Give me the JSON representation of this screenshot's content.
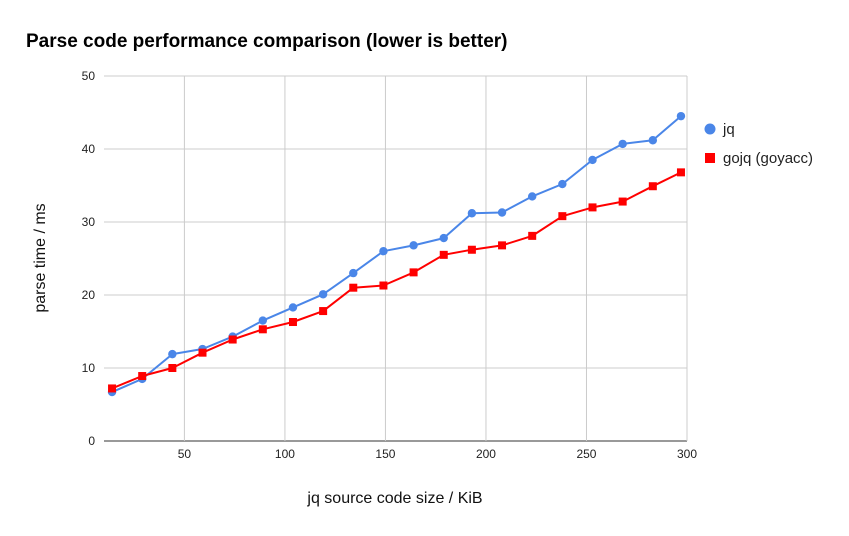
{
  "chart_data": {
    "type": "line",
    "title": "Parse code performance comparison (lower is better)",
    "xlabel": "jq source code size / KiB",
    "ylabel": "parse time / ms",
    "xlim": [
      10,
      300
    ],
    "ylim": [
      0,
      50
    ],
    "x_ticks": [
      50,
      100,
      150,
      200,
      250,
      300
    ],
    "y_ticks": [
      0,
      10,
      20,
      30,
      40,
      50
    ],
    "grid": true,
    "legend_position": "right",
    "series": [
      {
        "name": "jq",
        "color": "#4a86e8",
        "marker": "circle",
        "x": [
          14,
          29,
          44,
          59,
          74,
          89,
          104,
          119,
          134,
          149,
          164,
          179,
          193,
          208,
          223,
          238,
          253,
          268,
          283,
          297
        ],
        "y": [
          6.7,
          8.5,
          11.9,
          12.6,
          14.3,
          16.5,
          18.3,
          20.1,
          23.0,
          26.0,
          26.8,
          27.8,
          31.2,
          31.3,
          33.5,
          35.2,
          38.5,
          40.7,
          41.2,
          44.5
        ]
      },
      {
        "name": "gojq (goyacc)",
        "color": "#ff0000",
        "marker": "square",
        "x": [
          14,
          29,
          44,
          59,
          74,
          89,
          104,
          119,
          134,
          149,
          164,
          179,
          193,
          208,
          223,
          238,
          253,
          268,
          283,
          297
        ],
        "y": [
          7.2,
          8.9,
          10.0,
          12.1,
          13.9,
          15.3,
          16.3,
          17.8,
          21.0,
          21.3,
          23.1,
          25.5,
          26.2,
          26.8,
          28.1,
          30.8,
          32.0,
          32.8,
          34.9,
          36.8
        ]
      }
    ]
  }
}
